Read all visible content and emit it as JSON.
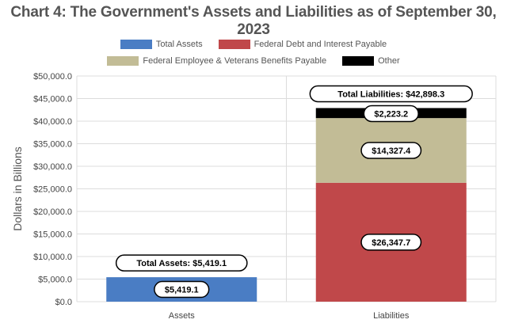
{
  "chart_data": {
    "type": "bar",
    "stacked": true,
    "title": "Chart 4: The Government's Assets and Liabilities as of September 30, 2023",
    "xlabel": "",
    "ylabel": "Dollars in Billions",
    "ylim": [
      0,
      50000
    ],
    "yticks": [
      "$0.0",
      "$5,000.0",
      "$10,000.0",
      "$15,000.0",
      "$20,000.0",
      "$25,000.0",
      "$30,000.0",
      "$35,000.0",
      "$40,000.0",
      "$45,000.0",
      "$50,000.0"
    ],
    "ytick_values": [
      0,
      5000,
      10000,
      15000,
      20000,
      25000,
      30000,
      35000,
      40000,
      45000,
      50000
    ],
    "categories": [
      "Assets",
      "Liabilities"
    ],
    "series": [
      {
        "name": "Total Assets",
        "color": "#4a7dc4",
        "values": [
          5419.1,
          0
        ],
        "labels": [
          "$5,419.1",
          ""
        ]
      },
      {
        "name": "Federal Debt and Interest Payable",
        "color": "#c0484a",
        "values": [
          0,
          26347.7
        ],
        "labels": [
          "",
          "$26,347.7"
        ]
      },
      {
        "name": "Federal Employee & Veterans Benefits Payable",
        "color": "#c2bc96",
        "values": [
          0,
          14327.4
        ],
        "labels": [
          "",
          "$14,327.4"
        ]
      },
      {
        "name": "Other",
        "color": "#000000",
        "values": [
          0,
          2223.2
        ],
        "labels": [
          "",
          "$2,223.2"
        ]
      }
    ],
    "totals": [
      {
        "category": "Assets",
        "value": 5419.1,
        "label": "Total Assets: $5,419.1"
      },
      {
        "category": "Liabilities",
        "value": 42898.3,
        "label": "Total Liabilities: $42,898.3"
      }
    ],
    "legend": {
      "row1": [
        "Total Assets",
        "Federal Debt and Interest Payable"
      ],
      "row2": [
        "Federal Employee & Veterans Benefits Payable",
        "Other"
      ]
    },
    "grid": true
  }
}
